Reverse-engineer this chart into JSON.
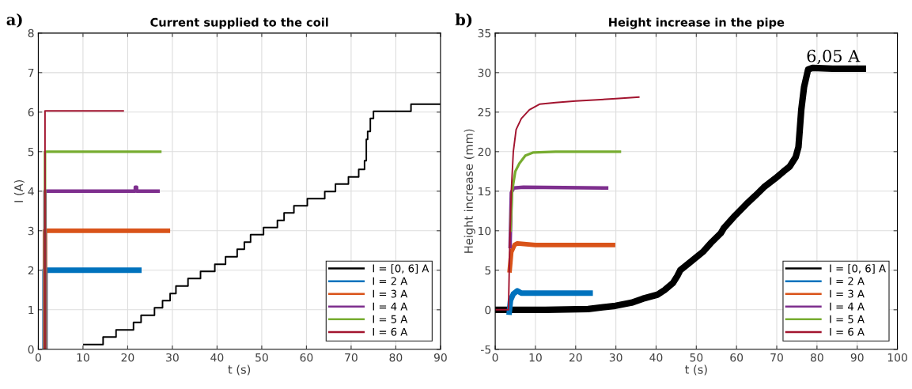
{
  "chart_data": [
    {
      "type": "line",
      "title": "Current supplied to the coil",
      "xlabel": "t (s)",
      "ylabel": "I (A)",
      "annotations": [
        "a)"
      ],
      "xlim": [
        0,
        90
      ],
      "xticks": [
        0,
        10,
        20,
        30,
        40,
        50,
        60,
        70,
        80,
        90
      ],
      "ylim": [
        0,
        8
      ],
      "yticks": [
        0,
        1,
        2,
        3,
        4,
        5,
        6,
        7,
        8
      ],
      "grid": true,
      "legend": "bottom right",
      "line_style": "solid",
      "marker": "none",
      "series": [
        {
          "name": "I = [0, 6] A",
          "color": "#000000",
          "type": "step",
          "x": [
            10.2,
            14.5,
            17.4,
            21.3,
            23.0,
            26.0,
            27.8,
            29.5,
            30.8,
            33.5,
            36.3,
            39.5,
            41.9,
            44.5,
            46.1,
            47.5,
            50.4,
            53.5,
            55.0,
            57.2,
            60.2,
            64.1,
            66.5,
            69.4,
            71.7,
            73.0,
            73.4,
            73.7,
            74.3,
            75.0,
            83.4,
            90
          ],
          "values": [
            0.12,
            0.31,
            0.49,
            0.68,
            0.86,
            1.05,
            1.23,
            1.41,
            1.6,
            1.79,
            1.97,
            2.15,
            2.34,
            2.53,
            2.71,
            2.9,
            3.08,
            3.26,
            3.45,
            3.63,
            3.81,
            3.99,
            4.18,
            4.36,
            4.55,
            4.77,
            5.31,
            5.51,
            5.84,
            6.02,
            6.2,
            6.2
          ]
        },
        {
          "name": "I = 2 A",
          "color": "#0072bd",
          "x": [
            1.5,
            1.5,
            22.5
          ],
          "values": [
            0,
            2,
            2
          ]
        },
        {
          "name": "I = 3 A",
          "color": "#d95319",
          "x": [
            1.5,
            1.5,
            29.0
          ],
          "values": [
            0,
            3,
            3
          ]
        },
        {
          "name": "I = 4 A",
          "color": "#7e2f8e",
          "x": [
            1.5,
            1.5,
            21.7,
            21.7,
            22.0,
            22.0,
            26.8
          ],
          "values": [
            0,
            4,
            4,
            4.1,
            4.1,
            4,
            4
          ]
        },
        {
          "name": "I = 5 A",
          "color": "#77ac30",
          "x": [
            1.5,
            1.5,
            27.3
          ],
          "values": [
            0,
            5,
            5
          ]
        },
        {
          "name": "I = 6 A",
          "color": "#a2142f",
          "x": [
            1.5,
            1.5,
            19.0
          ],
          "values": [
            0,
            6.03,
            6.03
          ]
        }
      ]
    },
    {
      "type": "line",
      "title": "Height increase in the pipe",
      "xlabel": "t (s)",
      "ylabel": "Height increase (mm)",
      "annotations": [
        "b)",
        {
          "text": "6,05 A",
          "x": 84,
          "y": 30.5
        }
      ],
      "xlim": [
        0,
        100
      ],
      "xticks": [
        0,
        10,
        20,
        30,
        40,
        50,
        60,
        70,
        80,
        90,
        100
      ],
      "ylim": [
        -5,
        35
      ],
      "yticks": [
        -5,
        0,
        5,
        10,
        15,
        20,
        25,
        30,
        35
      ],
      "grid": true,
      "legend": "bottom right",
      "line_style": "solid",
      "marker": "none",
      "series": [
        {
          "name": "I = [0, 6] A",
          "color": "#000000",
          "x": [
            0,
            3.4,
            12.4,
            23.1,
            29.9,
            33.9,
            36.7,
            40.3,
            42.1,
            44.2,
            45.3,
            46.0,
            48.2,
            51.8,
            53.9,
            56.1,
            56.8,
            59.6,
            62.5,
            64.6,
            66.8,
            69.6,
            71.7,
            73.2,
            74.7,
            75.4,
            76.1,
            76.8,
            77.8,
            78.9,
            83.9,
            91.4
          ],
          "values": [
            0,
            0,
            0,
            0.1,
            0.5,
            0.9,
            1.4,
            1.9,
            2.5,
            3.4,
            4.3,
            5.0,
            5.9,
            7.4,
            8.6,
            9.7,
            10.3,
            11.9,
            13.4,
            14.4,
            15.5,
            16.6,
            17.5,
            18.1,
            19.3,
            20.6,
            25.3,
            28.2,
            30.4,
            30.6,
            30.5,
            30.5
          ]
        },
        {
          "name": "I = 2 A",
          "color": "#0072bd",
          "x": [
            3.5,
            3.8,
            4.5,
            5.5,
            6.5,
            10,
            23.6
          ],
          "values": [
            -0.3,
            1.2,
            2.0,
            2.4,
            2.1,
            2.1,
            2.1
          ]
        },
        {
          "name": "I = 3 A",
          "color": "#d95319",
          "x": [
            3.6,
            4.0,
            4.8,
            5.5,
            10,
            29.3
          ],
          "values": [
            5,
            7.3,
            8.2,
            8.4,
            8.2,
            8.2
          ]
        },
        {
          "name": "I = 4 A",
          "color": "#7e2f8e",
          "x": [
            3.7,
            4.0,
            4.6,
            7,
            27.7
          ],
          "values": [
            8,
            14.8,
            15.4,
            15.5,
            15.4
          ]
        },
        {
          "name": "I = 5 A",
          "color": "#77ac30",
          "x": [
            3.8,
            4.2,
            5.0,
            6,
            7.5,
            9.5,
            15,
            31
          ],
          "values": [
            10,
            15,
            17.5,
            18.5,
            19.5,
            19.9,
            20,
            20
          ]
        },
        {
          "name": "I = 6 A",
          "color": "#a2142f",
          "x": [
            0,
            3.3,
            3.6,
            4.0,
            4.5,
            5.2,
            6.5,
            8.5,
            11,
            15,
            20,
            30,
            35.7
          ],
          "values": [
            0,
            0,
            8,
            15,
            20,
            22.8,
            24.2,
            25.3,
            26,
            26.2,
            26.4,
            26.7,
            26.9
          ]
        }
      ]
    }
  ]
}
